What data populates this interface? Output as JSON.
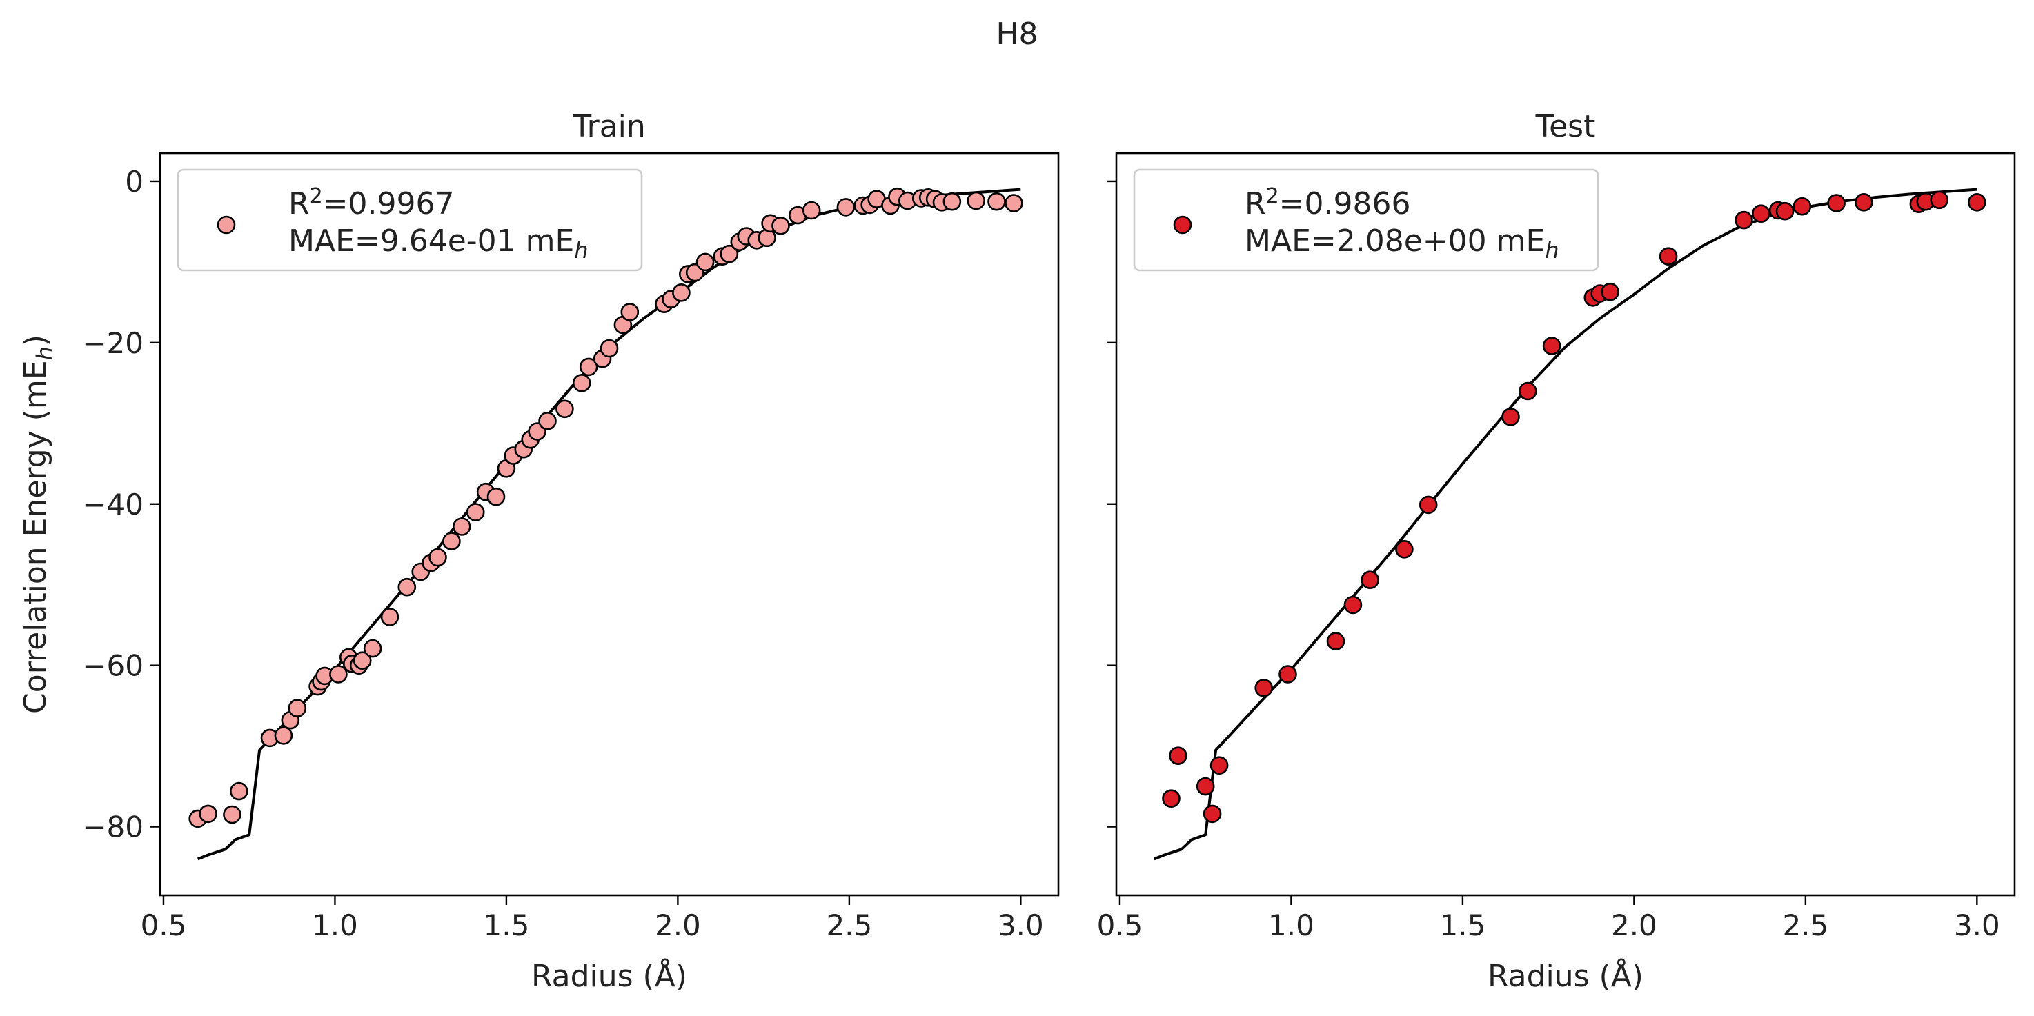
{
  "figure": {
    "suptitle": "H8"
  },
  "chart_data": [
    {
      "type": "scatter",
      "title": "Train",
      "xlabel": "Radius (Å)",
      "ylabel": "Correlation Energy (mE",
      "ylabel_sub": "h",
      "ylabel_close": ")",
      "xlim": [
        0.49,
        3.11
      ],
      "ylim": [
        -88.5,
        3.5
      ],
      "xticks": [
        0.5,
        1.0,
        1.5,
        2.0,
        2.5,
        3.0
      ],
      "xtick_labels": [
        "0.5",
        "1.0",
        "1.5",
        "2.0",
        "2.5",
        "3.0"
      ],
      "yticks": [
        0,
        -20,
        -40,
        -60,
        -80
      ],
      "ytick_labels": [
        "0",
        "−20",
        "−40",
        "−60",
        "−80"
      ],
      "show_yticklabels": true,
      "grid": false,
      "legend_position": "top-left",
      "legend": {
        "r2_prefix": "R",
        "r2_sup": "2",
        "r2_value": "=0.9967",
        "mae_text": "MAE=9.64e-01 mE",
        "mae_sub": "h"
      },
      "marker_color": "#f4a09f",
      "line_color": "#000000",
      "points": [
        {
          "x": 0.6,
          "y": -79.0
        },
        {
          "x": 0.63,
          "y": -78.4
        },
        {
          "x": 0.7,
          "y": -78.5
        },
        {
          "x": 0.72,
          "y": -75.6
        },
        {
          "x": 0.81,
          "y": -69.0
        },
        {
          "x": 0.85,
          "y": -68.7
        },
        {
          "x": 0.87,
          "y": -66.8
        },
        {
          "x": 0.89,
          "y": -65.3
        },
        {
          "x": 0.95,
          "y": -62.6
        },
        {
          "x": 0.96,
          "y": -62.0
        },
        {
          "x": 0.97,
          "y": -61.3
        },
        {
          "x": 1.01,
          "y": -61.1
        },
        {
          "x": 1.04,
          "y": -59.0
        },
        {
          "x": 1.05,
          "y": -59.8
        },
        {
          "x": 1.07,
          "y": -60.0
        },
        {
          "x": 1.08,
          "y": -59.4
        },
        {
          "x": 1.11,
          "y": -57.9
        },
        {
          "x": 1.16,
          "y": -54.0
        },
        {
          "x": 1.21,
          "y": -50.3
        },
        {
          "x": 1.25,
          "y": -48.4
        },
        {
          "x": 1.28,
          "y": -47.3
        },
        {
          "x": 1.3,
          "y": -46.6
        },
        {
          "x": 1.34,
          "y": -44.6
        },
        {
          "x": 1.37,
          "y": -42.8
        },
        {
          "x": 1.41,
          "y": -41.0
        },
        {
          "x": 1.44,
          "y": -38.5
        },
        {
          "x": 1.47,
          "y": -39.1
        },
        {
          "x": 1.5,
          "y": -35.6
        },
        {
          "x": 1.52,
          "y": -34.0
        },
        {
          "x": 1.55,
          "y": -33.2
        },
        {
          "x": 1.57,
          "y": -32.0
        },
        {
          "x": 1.59,
          "y": -31.0
        },
        {
          "x": 1.62,
          "y": -29.7
        },
        {
          "x": 1.67,
          "y": -28.2
        },
        {
          "x": 1.72,
          "y": -25.0
        },
        {
          "x": 1.74,
          "y": -23.0
        },
        {
          "x": 1.78,
          "y": -22.0
        },
        {
          "x": 1.8,
          "y": -20.7
        },
        {
          "x": 1.84,
          "y": -17.8
        },
        {
          "x": 1.86,
          "y": -16.2
        },
        {
          "x": 1.96,
          "y": -15.2
        },
        {
          "x": 1.98,
          "y": -14.6
        },
        {
          "x": 2.01,
          "y": -13.8
        },
        {
          "x": 2.03,
          "y": -11.5
        },
        {
          "x": 2.05,
          "y": -11.3
        },
        {
          "x": 2.08,
          "y": -10.0
        },
        {
          "x": 2.13,
          "y": -9.3
        },
        {
          "x": 2.15,
          "y": -9.0
        },
        {
          "x": 2.18,
          "y": -7.5
        },
        {
          "x": 2.2,
          "y": -6.8
        },
        {
          "x": 2.23,
          "y": -7.3
        },
        {
          "x": 2.26,
          "y": -7.0
        },
        {
          "x": 2.27,
          "y": -5.2
        },
        {
          "x": 2.3,
          "y": -5.5
        },
        {
          "x": 2.35,
          "y": -4.2
        },
        {
          "x": 2.39,
          "y": -3.6
        },
        {
          "x": 2.49,
          "y": -3.2
        },
        {
          "x": 2.54,
          "y": -3.0
        },
        {
          "x": 2.56,
          "y": -2.9
        },
        {
          "x": 2.58,
          "y": -2.2
        },
        {
          "x": 2.62,
          "y": -3.0
        },
        {
          "x": 2.64,
          "y": -1.9
        },
        {
          "x": 2.67,
          "y": -2.4
        },
        {
          "x": 2.71,
          "y": -2.1
        },
        {
          "x": 2.73,
          "y": -2.0
        },
        {
          "x": 2.75,
          "y": -2.2
        },
        {
          "x": 2.77,
          "y": -2.6
        },
        {
          "x": 2.8,
          "y": -2.5
        },
        {
          "x": 2.87,
          "y": -2.4
        },
        {
          "x": 2.93,
          "y": -2.5
        },
        {
          "x": 2.98,
          "y": -2.7
        }
      ],
      "line": [
        {
          "x": 0.6,
          "y": -84.0
        },
        {
          "x": 0.63,
          "y": -83.5
        },
        {
          "x": 0.68,
          "y": -82.8
        },
        {
          "x": 0.71,
          "y": -81.6
        },
        {
          "x": 0.75,
          "y": -81.0
        },
        {
          "x": 0.78,
          "y": -70.5
        },
        {
          "x": 0.82,
          "y": -68.7
        },
        {
          "x": 0.9,
          "y": -65.0
        },
        {
          "x": 1.0,
          "y": -60.5
        },
        {
          "x": 1.1,
          "y": -55.5
        },
        {
          "x": 1.2,
          "y": -50.5
        },
        {
          "x": 1.3,
          "y": -45.5
        },
        {
          "x": 1.4,
          "y": -40.2
        },
        {
          "x": 1.5,
          "y": -35.0
        },
        {
          "x": 1.6,
          "y": -30.0
        },
        {
          "x": 1.7,
          "y": -25.0
        },
        {
          "x": 1.8,
          "y": -20.5
        },
        {
          "x": 1.9,
          "y": -17.0
        },
        {
          "x": 2.0,
          "y": -14.0
        },
        {
          "x": 2.1,
          "y": -10.8
        },
        {
          "x": 2.2,
          "y": -8.0
        },
        {
          "x": 2.3,
          "y": -5.8
        },
        {
          "x": 2.4,
          "y": -4.2
        },
        {
          "x": 2.5,
          "y": -3.2
        },
        {
          "x": 2.6,
          "y": -2.5
        },
        {
          "x": 2.7,
          "y": -2.0
        },
        {
          "x": 2.8,
          "y": -1.6
        },
        {
          "x": 2.9,
          "y": -1.3
        },
        {
          "x": 3.0,
          "y": -1.0
        }
      ]
    },
    {
      "type": "scatter",
      "title": "Test",
      "xlabel": "Radius (Å)",
      "xlim": [
        0.49,
        3.11
      ],
      "ylim": [
        -88.5,
        3.5
      ],
      "xticks": [
        0.5,
        1.0,
        1.5,
        2.0,
        2.5,
        3.0
      ],
      "xtick_labels": [
        "0.5",
        "1.0",
        "1.5",
        "2.0",
        "2.5",
        "3.0"
      ],
      "yticks": [
        0,
        -20,
        -40,
        -60,
        -80
      ],
      "show_yticklabels": false,
      "grid": false,
      "legend_position": "top-left",
      "legend": {
        "r2_prefix": "R",
        "r2_sup": "2",
        "r2_value": "=0.9866",
        "mae_text": "MAE=2.08e+00 mE",
        "mae_sub": "h"
      },
      "marker_color": "#dc1c24",
      "line_color": "#000000",
      "points": [
        {
          "x": 0.65,
          "y": -76.5
        },
        {
          "x": 0.67,
          "y": -71.2
        },
        {
          "x": 0.75,
          "y": -75.0
        },
        {
          "x": 0.77,
          "y": -78.4
        },
        {
          "x": 0.79,
          "y": -72.4
        },
        {
          "x": 0.92,
          "y": -62.8
        },
        {
          "x": 0.99,
          "y": -61.1
        },
        {
          "x": 1.13,
          "y": -57.0
        },
        {
          "x": 1.18,
          "y": -52.5
        },
        {
          "x": 1.23,
          "y": -49.4
        },
        {
          "x": 1.33,
          "y": -45.6
        },
        {
          "x": 1.4,
          "y": -40.1
        },
        {
          "x": 1.64,
          "y": -29.2
        },
        {
          "x": 1.69,
          "y": -26.0
        },
        {
          "x": 1.76,
          "y": -20.4
        },
        {
          "x": 1.88,
          "y": -14.4
        },
        {
          "x": 1.9,
          "y": -13.9
        },
        {
          "x": 1.93,
          "y": -13.7
        },
        {
          "x": 2.1,
          "y": -9.3
        },
        {
          "x": 2.32,
          "y": -4.8
        },
        {
          "x": 2.37,
          "y": -4.0
        },
        {
          "x": 2.42,
          "y": -3.6
        },
        {
          "x": 2.44,
          "y": -3.7
        },
        {
          "x": 2.49,
          "y": -3.1
        },
        {
          "x": 2.59,
          "y": -2.7
        },
        {
          "x": 2.67,
          "y": -2.6
        },
        {
          "x": 2.83,
          "y": -2.8
        },
        {
          "x": 2.85,
          "y": -2.5
        },
        {
          "x": 2.89,
          "y": -2.3
        },
        {
          "x": 3.0,
          "y": -2.6
        }
      ],
      "line": [
        {
          "x": 0.6,
          "y": -84.0
        },
        {
          "x": 0.63,
          "y": -83.5
        },
        {
          "x": 0.68,
          "y": -82.8
        },
        {
          "x": 0.71,
          "y": -81.6
        },
        {
          "x": 0.75,
          "y": -81.0
        },
        {
          "x": 0.78,
          "y": -70.5
        },
        {
          "x": 0.82,
          "y": -68.7
        },
        {
          "x": 0.9,
          "y": -65.0
        },
        {
          "x": 1.0,
          "y": -60.5
        },
        {
          "x": 1.1,
          "y": -55.5
        },
        {
          "x": 1.2,
          "y": -50.5
        },
        {
          "x": 1.3,
          "y": -45.5
        },
        {
          "x": 1.4,
          "y": -40.2
        },
        {
          "x": 1.5,
          "y": -35.0
        },
        {
          "x": 1.6,
          "y": -30.0
        },
        {
          "x": 1.7,
          "y": -25.0
        },
        {
          "x": 1.8,
          "y": -20.5
        },
        {
          "x": 1.9,
          "y": -17.0
        },
        {
          "x": 2.0,
          "y": -14.0
        },
        {
          "x": 2.1,
          "y": -10.8
        },
        {
          "x": 2.2,
          "y": -8.0
        },
        {
          "x": 2.3,
          "y": -5.8
        },
        {
          "x": 2.4,
          "y": -4.2
        },
        {
          "x": 2.5,
          "y": -3.2
        },
        {
          "x": 2.6,
          "y": -2.5
        },
        {
          "x": 2.7,
          "y": -2.0
        },
        {
          "x": 2.8,
          "y": -1.6
        },
        {
          "x": 2.9,
          "y": -1.3
        },
        {
          "x": 3.0,
          "y": -1.0
        }
      ]
    }
  ]
}
